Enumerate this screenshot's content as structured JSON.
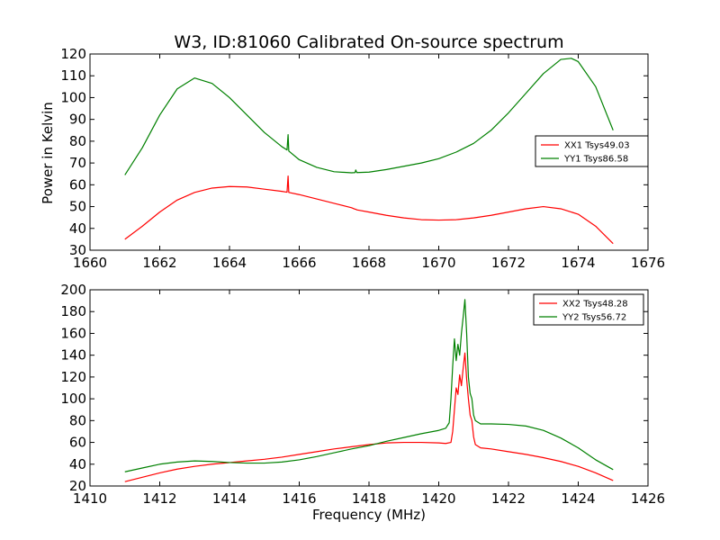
{
  "figure": {
    "title": "W3, ID:81060 Calibrated On-source spectrum",
    "ylabel": "Power in Kelvin",
    "xlabel": "Frequency (MHz)"
  },
  "colors": {
    "xx": "#ff0000",
    "yy": "#008000",
    "axes": "#000000"
  },
  "chart_data": [
    {
      "type": "line",
      "xlim": [
        1660,
        1676
      ],
      "ylim": [
        30,
        120
      ],
      "xticks": [
        1660,
        1662,
        1664,
        1666,
        1668,
        1670,
        1672,
        1674,
        1676
      ],
      "yticks": [
        30,
        40,
        50,
        60,
        70,
        80,
        90,
        100,
        110,
        120
      ],
      "ylabel": "Power in Kelvin",
      "legend_position": "right",
      "series": [
        {
          "name": "XX1 Tsys49.03",
          "color": "#ff0000",
          "points": [
            [
              1661.0,
              35.0
            ],
            [
              1661.5,
              41.0
            ],
            [
              1662.0,
              47.5
            ],
            [
              1662.5,
              53.0
            ],
            [
              1663.0,
              56.5
            ],
            [
              1663.5,
              58.5
            ],
            [
              1664.0,
              59.2
            ],
            [
              1664.5,
              59.0
            ],
            [
              1665.0,
              58.0
            ],
            [
              1665.5,
              57.0
            ],
            [
              1665.65,
              56.6
            ],
            [
              1665.68,
              64.0
            ],
            [
              1665.7,
              56.5
            ],
            [
              1666.0,
              55.5
            ],
            [
              1666.5,
              53.5
            ],
            [
              1667.0,
              51.5
            ],
            [
              1667.5,
              49.5
            ],
            [
              1667.6,
              48.8
            ],
            [
              1667.62,
              48.8
            ],
            [
              1667.65,
              48.5
            ],
            [
              1668.0,
              47.5
            ],
            [
              1668.5,
              46.0
            ],
            [
              1669.0,
              44.8
            ],
            [
              1669.5,
              44.0
            ],
            [
              1670.0,
              43.8
            ],
            [
              1670.5,
              44.0
            ],
            [
              1671.0,
              44.8
            ],
            [
              1671.5,
              46.0
            ],
            [
              1672.0,
              47.5
            ],
            [
              1672.5,
              49.0
            ],
            [
              1673.0,
              50.0
            ],
            [
              1673.5,
              49.0
            ],
            [
              1674.0,
              46.5
            ],
            [
              1674.5,
              41.0
            ],
            [
              1675.0,
              33.0
            ]
          ]
        },
        {
          "name": "YY1 Tsys86.58",
          "color": "#008000",
          "points": [
            [
              1661.0,
              64.5
            ],
            [
              1661.5,
              77.0
            ],
            [
              1662.0,
              92.0
            ],
            [
              1662.5,
              104.0
            ],
            [
              1663.0,
              109.0
            ],
            [
              1663.5,
              106.5
            ],
            [
              1664.0,
              100.0
            ],
            [
              1664.5,
              92.0
            ],
            [
              1665.0,
              84.0
            ],
            [
              1665.5,
              77.5
            ],
            [
              1665.65,
              76.0
            ],
            [
              1665.68,
              83.0
            ],
            [
              1665.7,
              75.5
            ],
            [
              1666.0,
              71.5
            ],
            [
              1666.5,
              68.0
            ],
            [
              1667.0,
              66.0
            ],
            [
              1667.5,
              65.5
            ],
            [
              1667.6,
              65.6
            ],
            [
              1667.62,
              66.8
            ],
            [
              1667.65,
              65.6
            ],
            [
              1668.0,
              65.8
            ],
            [
              1668.5,
              67.0
            ],
            [
              1669.0,
              68.5
            ],
            [
              1669.5,
              70.0
            ],
            [
              1670.0,
              72.0
            ],
            [
              1670.5,
              75.0
            ],
            [
              1671.0,
              79.0
            ],
            [
              1671.5,
              85.0
            ],
            [
              1672.0,
              93.0
            ],
            [
              1672.5,
              102.0
            ],
            [
              1673.0,
              111.0
            ],
            [
              1673.5,
              117.5
            ],
            [
              1673.8,
              118.0
            ],
            [
              1674.0,
              116.5
            ],
            [
              1674.5,
              105.0
            ],
            [
              1675.0,
              85.0
            ]
          ]
        }
      ]
    },
    {
      "type": "line",
      "xlim": [
        1410,
        1426
      ],
      "ylim": [
        20,
        200
      ],
      "xticks": [
        1410,
        1412,
        1414,
        1416,
        1418,
        1420,
        1422,
        1424,
        1426
      ],
      "yticks": [
        20,
        40,
        60,
        80,
        100,
        120,
        140,
        160,
        180,
        200
      ],
      "xlabel": "Frequency (MHz)",
      "legend_position": "top-right",
      "series": [
        {
          "name": "XX2 Tsys48.28",
          "color": "#ff0000",
          "points": [
            [
              1411.0,
              24.0
            ],
            [
              1411.5,
              28.0
            ],
            [
              1412.0,
              32.0
            ],
            [
              1412.5,
              35.5
            ],
            [
              1413.0,
              38.0
            ],
            [
              1413.5,
              40.0
            ],
            [
              1414.0,
              41.5
            ],
            [
              1414.5,
              43.0
            ],
            [
              1415.0,
              44.5
            ],
            [
              1415.5,
              46.5
            ],
            [
              1416.0,
              49.0
            ],
            [
              1416.5,
              51.5
            ],
            [
              1417.0,
              54.0
            ],
            [
              1417.5,
              56.0
            ],
            [
              1418.0,
              58.0
            ],
            [
              1418.5,
              59.5
            ],
            [
              1419.0,
              60.0
            ],
            [
              1419.5,
              60.0
            ],
            [
              1420.0,
              59.5
            ],
            [
              1420.2,
              59.0
            ],
            [
              1420.35,
              60.0
            ],
            [
              1420.4,
              70.0
            ],
            [
              1420.45,
              90.0
            ],
            [
              1420.5,
              110.0
            ],
            [
              1420.55,
              104.0
            ],
            [
              1420.6,
              122.0
            ],
            [
              1420.65,
              112.0
            ],
            [
              1420.7,
              128.0
            ],
            [
              1420.75,
              142.0
            ],
            [
              1420.8,
              118.0
            ],
            [
              1420.85,
              100.0
            ],
            [
              1420.9,
              85.0
            ],
            [
              1420.95,
              80.0
            ],
            [
              1421.0,
              65.0
            ],
            [
              1421.05,
              58.0
            ],
            [
              1421.2,
              55.0
            ],
            [
              1421.5,
              54.0
            ],
            [
              1422.0,
              51.5
            ],
            [
              1422.5,
              49.0
            ],
            [
              1423.0,
              46.0
            ],
            [
              1423.5,
              42.5
            ],
            [
              1424.0,
              38.0
            ],
            [
              1424.5,
              32.0
            ],
            [
              1425.0,
              25.0
            ]
          ]
        },
        {
          "name": "YY2 Tsys56.72",
          "color": "#008000",
          "points": [
            [
              1411.0,
              33.0
            ],
            [
              1411.5,
              36.5
            ],
            [
              1412.0,
              40.0
            ],
            [
              1412.5,
              42.0
            ],
            [
              1413.0,
              43.0
            ],
            [
              1413.5,
              42.5
            ],
            [
              1414.0,
              41.5
            ],
            [
              1414.5,
              41.0
            ],
            [
              1415.0,
              41.0
            ],
            [
              1415.5,
              42.0
            ],
            [
              1416.0,
              44.0
            ],
            [
              1416.5,
              47.0
            ],
            [
              1417.0,
              50.5
            ],
            [
              1417.5,
              54.0
            ],
            [
              1418.0,
              57.0
            ],
            [
              1418.5,
              61.0
            ],
            [
              1419.0,
              64.5
            ],
            [
              1419.5,
              68.0
            ],
            [
              1420.0,
              71.0
            ],
            [
              1420.2,
              73.0
            ],
            [
              1420.3,
              78.0
            ],
            [
              1420.35,
              100.0
            ],
            [
              1420.4,
              130.0
            ],
            [
              1420.45,
              155.0
            ],
            [
              1420.5,
              135.0
            ],
            [
              1420.55,
              150.0
            ],
            [
              1420.6,
              140.0
            ],
            [
              1420.65,
              160.0
            ],
            [
              1420.7,
              175.0
            ],
            [
              1420.75,
              191.0
            ],
            [
              1420.8,
              160.0
            ],
            [
              1420.85,
              120.0
            ],
            [
              1420.9,
              105.0
            ],
            [
              1420.95,
              100.0
            ],
            [
              1421.0,
              85.0
            ],
            [
              1421.05,
              80.0
            ],
            [
              1421.2,
              77.0
            ],
            [
              1421.5,
              77.0
            ],
            [
              1422.0,
              76.5
            ],
            [
              1422.5,
              75.0
            ],
            [
              1423.0,
              71.0
            ],
            [
              1423.5,
              64.0
            ],
            [
              1424.0,
              55.0
            ],
            [
              1424.5,
              44.0
            ],
            [
              1425.0,
              35.0
            ]
          ]
        }
      ]
    }
  ]
}
